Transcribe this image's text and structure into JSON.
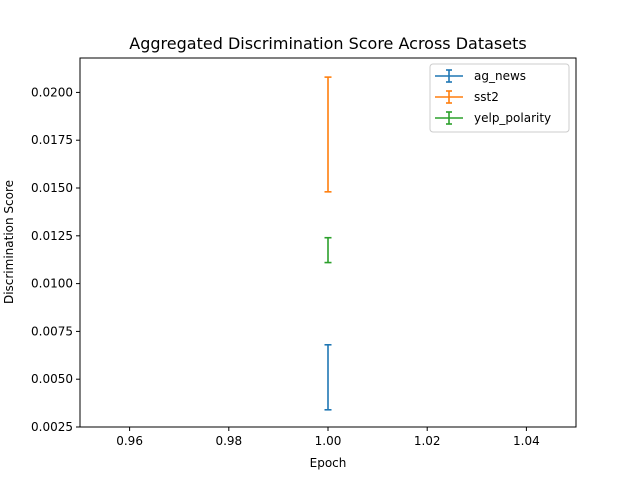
{
  "chart_data": {
    "type": "errorbar",
    "title": "Aggregated Discrimination Score Across Datasets",
    "xlabel": "Epoch",
    "ylabel": "Discrimination Score",
    "xlim": [
      0.95,
      1.05
    ],
    "ylim": [
      0.0025,
      0.0218
    ],
    "xticks": [
      "0.96",
      "0.98",
      "1.00",
      "1.02",
      "1.04"
    ],
    "yticks": [
      "0.0025",
      "0.0050",
      "0.0075",
      "0.0100",
      "0.0125",
      "0.0150",
      "0.0175",
      "0.0200"
    ],
    "grid": false,
    "legend_position": "top-right",
    "series": [
      {
        "name": "ag_news",
        "color": "#1f77b4",
        "x": 1.0,
        "y": 0.0051,
        "err": 0.0017
      },
      {
        "name": "sst2",
        "color": "#ff7f0e",
        "x": 1.0,
        "y": 0.0178,
        "err": 0.003
      },
      {
        "name": "yelp_polarity",
        "color": "#2ca02c",
        "x": 1.0,
        "y": 0.01175,
        "err": 0.00065
      }
    ]
  }
}
